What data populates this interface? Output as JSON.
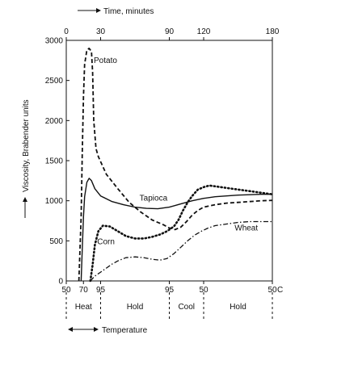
{
  "chart_data": {
    "type": "line",
    "top_axis": {
      "label": "Time, minutes",
      "ticks": [
        0,
        30,
        90,
        120,
        180
      ],
      "range": [
        0,
        180
      ]
    },
    "y_axis": {
      "label": "Viscosity, Brabender units",
      "ticks": [
        0,
        500,
        1000,
        1500,
        2000,
        2500,
        3000
      ],
      "range": [
        0,
        3000
      ]
    },
    "bottom_axis": {
      "label": "Temperature",
      "unit": "C",
      "ticks": [
        {
          "t": 0,
          "label": "50"
        },
        {
          "t": 15,
          "label": "70"
        },
        {
          "t": 30,
          "label": "95"
        },
        {
          "t": 90,
          "label": "95"
        },
        {
          "t": 120,
          "label": "50"
        },
        {
          "t": 180,
          "label": "50"
        }
      ]
    },
    "phases": [
      {
        "label": "Heat",
        "start": 0,
        "end": 30
      },
      {
        "label": "Hold",
        "start": 30,
        "end": 90
      },
      {
        "label": "Cool",
        "start": 90,
        "end": 120
      },
      {
        "label": "Hold",
        "start": 120,
        "end": 180
      }
    ],
    "series": [
      {
        "name": "Potato",
        "style": "dashed",
        "label_at": [
          24,
          2720
        ],
        "points": [
          [
            11,
            0
          ],
          [
            13,
            800
          ],
          [
            14,
            1600
          ],
          [
            15,
            2300
          ],
          [
            16,
            2700
          ],
          [
            18,
            2880
          ],
          [
            20,
            2900
          ],
          [
            22,
            2860
          ],
          [
            23,
            2600
          ],
          [
            24,
            2000
          ],
          [
            26,
            1650
          ],
          [
            28,
            1550
          ],
          [
            35,
            1330
          ],
          [
            45,
            1150
          ],
          [
            55,
            980
          ],
          [
            65,
            860
          ],
          [
            75,
            760
          ],
          [
            85,
            700
          ],
          [
            90,
            660
          ],
          [
            95,
            640
          ],
          [
            100,
            670
          ],
          [
            105,
            740
          ],
          [
            110,
            820
          ],
          [
            115,
            880
          ],
          [
            120,
            920
          ],
          [
            130,
            950
          ],
          [
            140,
            970
          ],
          [
            150,
            980
          ],
          [
            160,
            990
          ],
          [
            170,
            1000
          ],
          [
            180,
            1005
          ]
        ]
      },
      {
        "name": "Tapioca",
        "style": "solid",
        "label_at": [
          64,
          1000
        ],
        "points": [
          [
            13,
            0
          ],
          [
            14,
            400
          ],
          [
            15,
            800
          ],
          [
            16,
            1050
          ],
          [
            18,
            1230
          ],
          [
            20,
            1280
          ],
          [
            22,
            1250
          ],
          [
            25,
            1150
          ],
          [
            30,
            1060
          ],
          [
            40,
            990
          ],
          [
            50,
            950
          ],
          [
            60,
            920
          ],
          [
            70,
            905
          ],
          [
            80,
            900
          ],
          [
            90,
            920
          ],
          [
            100,
            960
          ],
          [
            110,
            1000
          ],
          [
            120,
            1030
          ],
          [
            130,
            1050
          ],
          [
            140,
            1060
          ],
          [
            150,
            1070
          ],
          [
            160,
            1075
          ],
          [
            170,
            1080
          ],
          [
            180,
            1080
          ]
        ]
      },
      {
        "name": "Corn",
        "style": "dotted",
        "label_at": [
          27,
          460
        ],
        "points": [
          [
            21,
            0
          ],
          [
            23,
            200
          ],
          [
            25,
            450
          ],
          [
            28,
            620
          ],
          [
            32,
            690
          ],
          [
            38,
            680
          ],
          [
            45,
            620
          ],
          [
            52,
            560
          ],
          [
            60,
            530
          ],
          [
            68,
            530
          ],
          [
            75,
            550
          ],
          [
            82,
            580
          ],
          [
            88,
            620
          ],
          [
            94,
            680
          ],
          [
            98,
            760
          ],
          [
            102,
            880
          ],
          [
            106,
            980
          ],
          [
            110,
            1060
          ],
          [
            115,
            1140
          ],
          [
            120,
            1170
          ],
          [
            125,
            1190
          ],
          [
            130,
            1180
          ],
          [
            140,
            1160
          ],
          [
            150,
            1140
          ],
          [
            160,
            1120
          ],
          [
            170,
            1100
          ],
          [
            180,
            1080
          ]
        ]
      },
      {
        "name": "Wheat",
        "style": "dashdot",
        "label_at": [
          147,
          630
        ],
        "points": [
          [
            21,
            0
          ],
          [
            25,
            60
          ],
          [
            30,
            110
          ],
          [
            35,
            160
          ],
          [
            40,
            210
          ],
          [
            45,
            250
          ],
          [
            52,
            290
          ],
          [
            60,
            300
          ],
          [
            68,
            290
          ],
          [
            75,
            270
          ],
          [
            82,
            260
          ],
          [
            88,
            280
          ],
          [
            94,
            340
          ],
          [
            100,
            420
          ],
          [
            106,
            500
          ],
          [
            112,
            570
          ],
          [
            118,
            620
          ],
          [
            124,
            660
          ],
          [
            130,
            690
          ],
          [
            140,
            710
          ],
          [
            150,
            730
          ],
          [
            160,
            740
          ],
          [
            170,
            740
          ],
          [
            180,
            740
          ]
        ]
      }
    ]
  }
}
